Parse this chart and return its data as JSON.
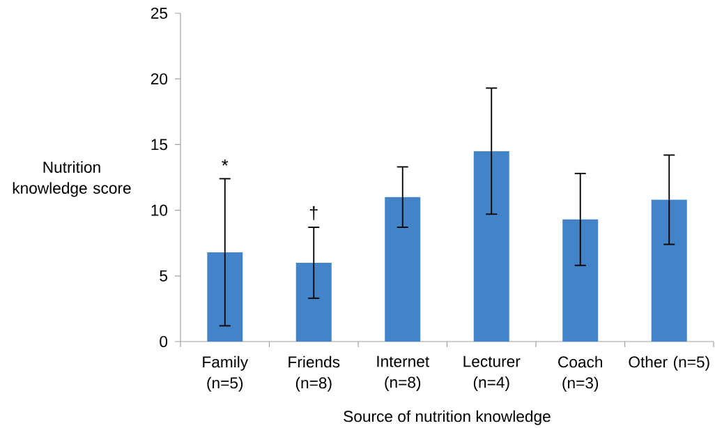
{
  "chart_data": {
    "type": "bar",
    "xlabel": "Source of nutrition knowledge",
    "ylabel": "Nutrition knowledge score",
    "categories": [
      "Family (n=5)",
      "Friends (n=8)",
      "Internet (n=8)",
      "Lecturer (n=4)",
      "Coach (n=3)",
      "Other (n=5)"
    ],
    "values": [
      6.8,
      6.0,
      11.0,
      14.5,
      9.3,
      10.8
    ],
    "errors": [
      5.6,
      2.7,
      2.3,
      4.8,
      3.5,
      3.4
    ],
    "color": "#4384c8",
    "ylim": [
      0,
      25
    ],
    "yticks": [
      0,
      5,
      10,
      15,
      20,
      25
    ],
    "annotations": [
      {
        "text": "*",
        "x": "Family (n=5)",
        "y": 12.4
      },
      {
        "text": "†",
        "x": "Friends (n=8)",
        "y": 8.7
      }
    ]
  }
}
